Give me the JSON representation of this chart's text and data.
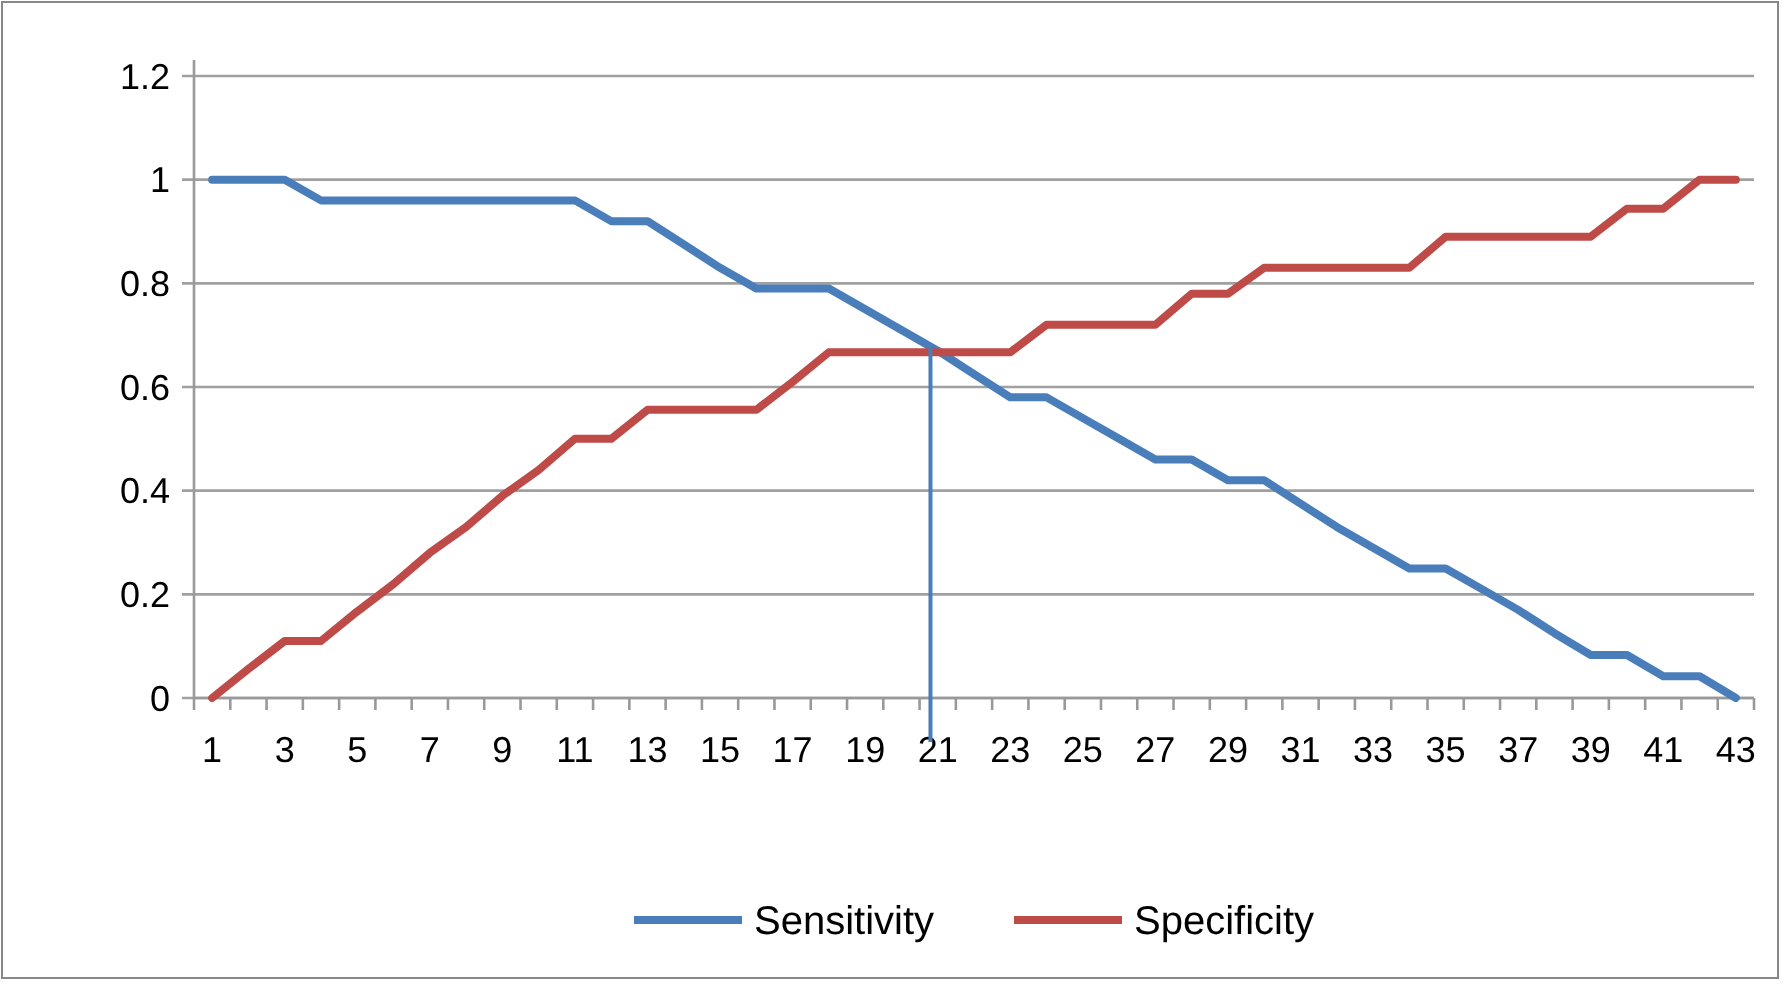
{
  "chart_data": {
    "type": "line",
    "x": [
      1,
      2,
      3,
      4,
      5,
      6,
      7,
      8,
      9,
      10,
      11,
      12,
      13,
      14,
      15,
      16,
      17,
      18,
      19,
      20,
      21,
      22,
      23,
      24,
      25,
      26,
      27,
      28,
      29,
      30,
      31,
      32,
      33,
      34,
      35,
      36,
      37,
      38,
      39,
      40,
      41,
      42,
      43
    ],
    "xlim": [
      0.5,
      43.5
    ],
    "xticks": [
      1,
      3,
      5,
      7,
      9,
      11,
      13,
      15,
      17,
      19,
      21,
      23,
      25,
      27,
      29,
      31,
      33,
      35,
      37,
      39,
      41,
      43
    ],
    "ylim": [
      0,
      1.2
    ],
    "yticks": [
      0,
      0.2,
      0.4,
      0.6,
      0.8,
      1,
      1.2
    ],
    "grid": "y",
    "legend": "bottom",
    "marker": "none",
    "line_style": "solid",
    "series": [
      {
        "name": "Sensitivity",
        "color": "#4a7ebb",
        "values": [
          1,
          1,
          1,
          0.96,
          0.96,
          0.96,
          0.96,
          0.96,
          0.96,
          0.96,
          0.96,
          0.92,
          0.92,
          0.875,
          0.83,
          0.79,
          0.79,
          0.79,
          0.75,
          0.71,
          0.67,
          0.625,
          0.58,
          0.58,
          0.54,
          0.5,
          0.46,
          0.46,
          0.42,
          0.42,
          0.375,
          0.33,
          0.29,
          0.25,
          0.25,
          0.21,
          0.17,
          0.125,
          0.083,
          0.083,
          0.042,
          0.042,
          0
        ]
      },
      {
        "name": "Specificity",
        "color": "#be4b48",
        "values": [
          0,
          0.056,
          0.11,
          0.11,
          0.167,
          0.22,
          0.28,
          0.33,
          0.39,
          0.44,
          0.5,
          0.5,
          0.556,
          0.556,
          0.556,
          0.556,
          0.61,
          0.667,
          0.667,
          0.667,
          0.667,
          0.667,
          0.667,
          0.72,
          0.72,
          0.72,
          0.72,
          0.78,
          0.78,
          0.83,
          0.83,
          0.83,
          0.83,
          0.83,
          0.89,
          0.89,
          0.89,
          0.89,
          0.89,
          0.944,
          0.944,
          1,
          1
        ]
      }
    ],
    "ref_lines": [
      {
        "axis": "x",
        "value": 20.8,
        "color": "#4a7ebb"
      }
    ]
  }
}
